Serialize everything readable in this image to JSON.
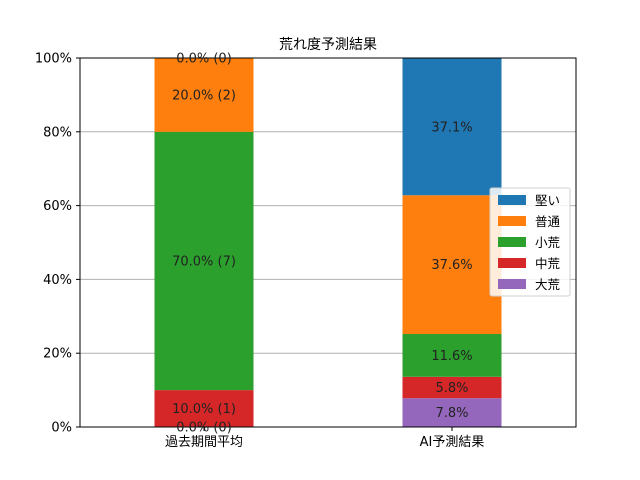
{
  "chart_data": {
    "type": "bar",
    "stacked": true,
    "title": "荒れ度予測結果",
    "categories": [
      "過去期間平均",
      "AI予測結果"
    ],
    "ylim": [
      0,
      100
    ],
    "yticks": [
      "0%",
      "20%",
      "40%",
      "60%",
      "80%",
      "100%"
    ],
    "grid": "y",
    "legend_position": "right",
    "series": [
      {
        "name": "大荒",
        "color": "#9467bd",
        "values": [
          0.0,
          7.8
        ],
        "labels": [
          "0.0% (0)",
          "7.8%"
        ]
      },
      {
        "name": "中荒",
        "color": "#d62728",
        "values": [
          10.0,
          5.8
        ],
        "labels": [
          "10.0% (1)",
          "5.8%"
        ]
      },
      {
        "name": "小荒",
        "color": "#2ca02c",
        "values": [
          70.0,
          11.6
        ],
        "labels": [
          "70.0% (7)",
          "11.6%"
        ]
      },
      {
        "name": "普通",
        "color": "#ff7f0e",
        "values": [
          20.0,
          37.6
        ],
        "labels": [
          "20.0% (2)",
          "37.6%"
        ]
      },
      {
        "name": "堅い",
        "color": "#1f77b4",
        "values": [
          0.0,
          37.1
        ],
        "labels": [
          "0.0% (0)",
          "37.1%"
        ]
      }
    ],
    "legend_order": [
      "堅い",
      "普通",
      "小荒",
      "中荒",
      "大荒"
    ]
  }
}
